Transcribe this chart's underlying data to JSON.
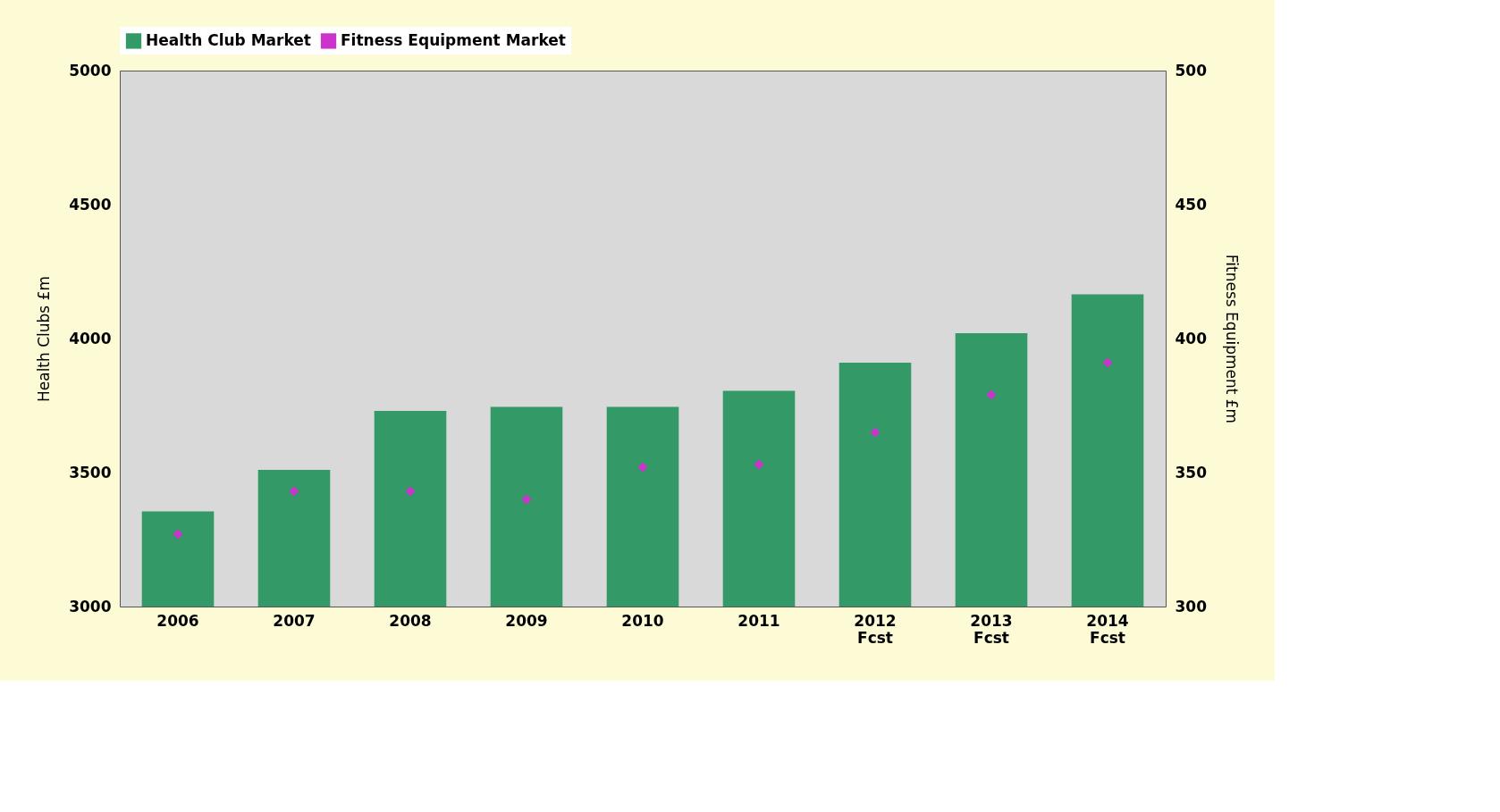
{
  "chart_data": {
    "type": "bar",
    "categories": [
      "2006",
      "2007",
      "2008",
      "2009",
      "2010",
      "2011",
      "2012 Fcst",
      "2013 Fcst",
      "2014 Fcst"
    ],
    "series": [
      {
        "name": "Health Club Market",
        "color": "#339966",
        "values": [
          3355,
          3510,
          3730,
          3745,
          3745,
          3805,
          3910,
          4020,
          4165
        ]
      },
      {
        "name": "Fitness Equipment Market",
        "type": "scatter",
        "axis": "y2",
        "color": "#cc33cc",
        "marker": "diamond",
        "values": [
          327,
          343,
          343,
          340,
          352,
          353,
          365,
          379,
          391
        ]
      }
    ],
    "ylabel": "Health Clubs £m",
    "y2label": "Fitness Equipment £m",
    "ylim": [
      3000,
      5000
    ],
    "yticks": [
      3000,
      3500,
      4000,
      4500,
      5000
    ],
    "y2lim": [
      300,
      500
    ],
    "y2ticks": [
      300,
      350,
      400,
      450,
      500
    ],
    "legend": "top",
    "grid": false
  }
}
